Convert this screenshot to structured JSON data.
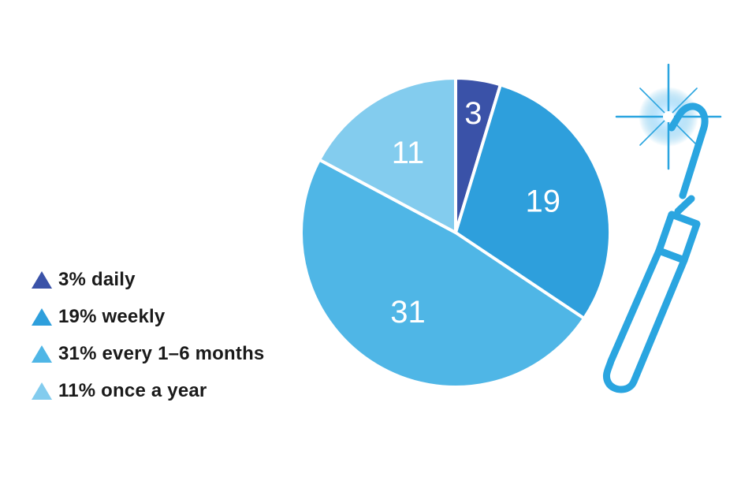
{
  "chart_data": {
    "type": "pie",
    "slices": [
      {
        "label": "3",
        "value": 3,
        "color": "#3a52a8",
        "legend": "3% daily"
      },
      {
        "label": "19",
        "value": 19,
        "color": "#2e9fdc",
        "legend": "19% weekly"
      },
      {
        "label": "31",
        "value": 31,
        "color": "#4fb6e6",
        "legend": "31% every 1–6 months"
      },
      {
        "label": "11",
        "value": 11,
        "color": "#83ccee",
        "legend": "11% once a year"
      }
    ],
    "title": "",
    "legend_position": "left"
  },
  "decoration": {
    "icon": "sparkling-dental-tool-icon",
    "color": "#2aa5e0"
  }
}
